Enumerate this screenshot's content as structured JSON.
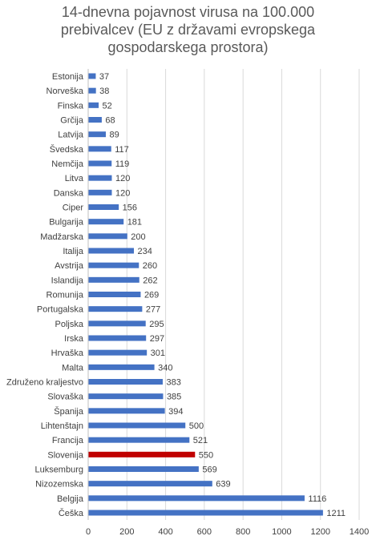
{
  "chart_data": {
    "type": "bar",
    "orientation": "horizontal",
    "title_lines": [
      "14-dnevna pojavnost virusa na 100.000",
      "prebivalcev (EU z državami evropskega",
      "gospodarskega prostora)"
    ],
    "categories": [
      "Estonija",
      "Norveška",
      "Finska",
      "Grčija",
      "Latvija",
      "Švedska",
      "Nemčija",
      "Litva",
      "Danska",
      "Ciper",
      "Bulgarija",
      "Madžarska",
      "Italija",
      "Avstrija",
      "Islandija",
      "Romunija",
      "Portugalska",
      "Poljska",
      "Irska",
      "Hrvaška",
      "Malta",
      "Združeno kraljestvo",
      "Slovaška",
      "Španija",
      "Lihtenštajn",
      "Francija",
      "Slovenija",
      "Luksemburg",
      "Nizozemska",
      "Belgija",
      "Češka"
    ],
    "values": [
      37,
      38,
      52,
      68,
      89,
      117,
      119,
      120,
      120,
      156,
      181,
      200,
      234,
      260,
      262,
      269,
      277,
      295,
      297,
      301,
      340,
      383,
      385,
      394,
      500,
      521,
      550,
      569,
      639,
      1116,
      1211
    ],
    "xlim": [
      0,
      1400
    ],
    "xticks": [
      0,
      200,
      400,
      600,
      800,
      1000,
      1200,
      1400
    ],
    "grid": true,
    "bar_color": "#4472C4",
    "highlight_color": "#C00000",
    "highlight_category": "Slovenija"
  }
}
